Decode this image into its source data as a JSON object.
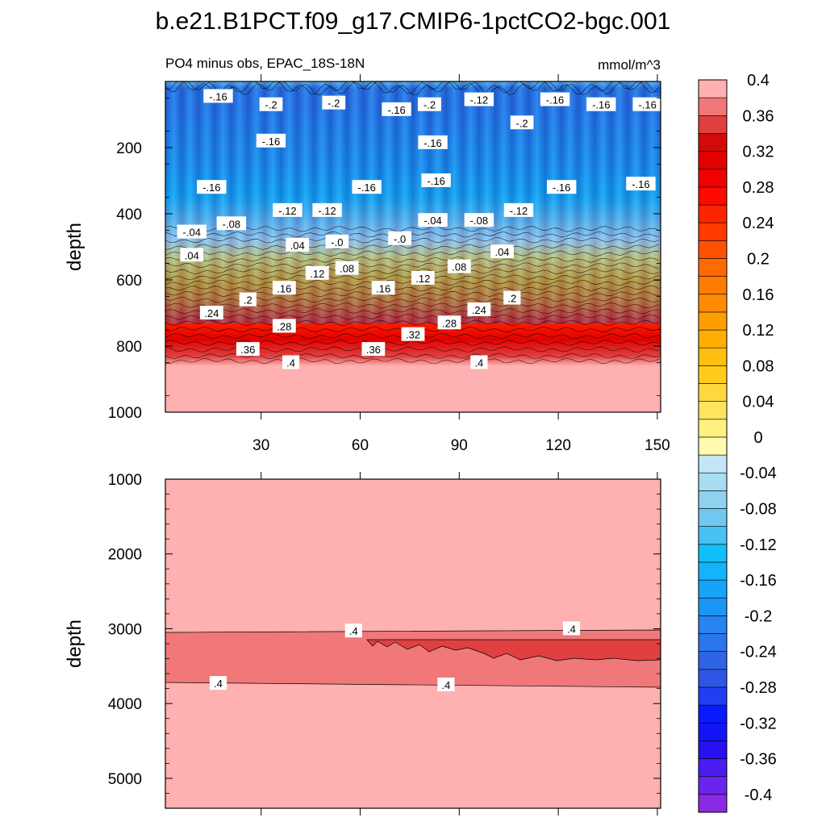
{
  "chart_data": {
    "type": "heatmap",
    "title": "b.e21.B1PCT.f09_g17.CMIP6-1pctCO2-bgc.001",
    "subtitle_left": "PO4 minus obs, EPAC_18S-18N",
    "subtitle_right": "mmol/m^3",
    "panels": [
      {
        "name": "upper",
        "ylabel": "depth",
        "xlim": [
          1,
          151
        ],
        "ylim": [
          0,
          1000
        ],
        "xticks": [
          30,
          60,
          90,
          120,
          150
        ],
        "xtick_labels": [
          "30",
          "60",
          "90",
          "120",
          "150"
        ],
        "yticks": [
          200,
          400,
          600,
          800,
          1000
        ],
        "ytick_labels": [
          "200",
          "400",
          "600",
          "800",
          "1000"
        ],
        "value_profile": [
          {
            "depth": 0,
            "value": -0.06
          },
          {
            "depth": 20,
            "value": -0.2
          },
          {
            "depth": 80,
            "value": -0.2
          },
          {
            "depth": 250,
            "value": -0.16
          },
          {
            "depth": 350,
            "value": -0.13
          },
          {
            "depth": 420,
            "value": -0.07
          },
          {
            "depth": 480,
            "value": 0.0
          },
          {
            "depth": 530,
            "value": 0.05
          },
          {
            "depth": 600,
            "value": 0.13
          },
          {
            "depth": 660,
            "value": 0.2
          },
          {
            "depth": 720,
            "value": 0.27
          },
          {
            "depth": 780,
            "value": 0.33
          },
          {
            "depth": 830,
            "value": 0.38
          },
          {
            "depth": 860,
            "value": 0.42
          },
          {
            "depth": 1000,
            "value": 0.42
          }
        ],
        "contour_labels": [
          {
            "text": "-.16",
            "x": 17,
            "y": 45
          },
          {
            "text": "-.2",
            "x": 33,
            "y": 70
          },
          {
            "text": "-.2",
            "x": 52,
            "y": 65
          },
          {
            "text": "-.16",
            "x": 71,
            "y": 85
          },
          {
            "text": "-.2",
            "x": 81,
            "y": 70
          },
          {
            "text": "-.12",
            "x": 96,
            "y": 55
          },
          {
            "text": "-.16",
            "x": 119,
            "y": 55
          },
          {
            "text": "-.2",
            "x": 109,
            "y": 125
          },
          {
            "text": "-.16",
            "x": 133,
            "y": 70
          },
          {
            "text": "-.16",
            "x": 147,
            "y": 70
          },
          {
            "text": "-.16",
            "x": 33,
            "y": 180
          },
          {
            "text": "-.16",
            "x": 82,
            "y": 185
          },
          {
            "text": "-.16",
            "x": 15,
            "y": 320
          },
          {
            "text": "-.16",
            "x": 62,
            "y": 320
          },
          {
            "text": "-.16",
            "x": 83,
            "y": 300
          },
          {
            "text": "-.16",
            "x": 121,
            "y": 320
          },
          {
            "text": "-.16",
            "x": 145,
            "y": 310
          },
          {
            "text": "-.12",
            "x": 38,
            "y": 390
          },
          {
            "text": "-.12",
            "x": 50,
            "y": 390
          },
          {
            "text": "-.12",
            "x": 108,
            "y": 390
          },
          {
            "text": "-.04",
            "x": 9,
            "y": 455
          },
          {
            "text": "-.08",
            "x": 21,
            "y": 430
          },
          {
            "text": "-.04",
            "x": 82,
            "y": 420
          },
          {
            "text": "-.08",
            "x": 96,
            "y": 420
          },
          {
            "text": ".04",
            "x": 41,
            "y": 495
          },
          {
            "text": "-.0",
            "x": 53,
            "y": 485
          },
          {
            "text": "-.0",
            "x": 72,
            "y": 475
          },
          {
            "text": ".04",
            "x": 9,
            "y": 525
          },
          {
            "text": ".04",
            "x": 103,
            "y": 515
          },
          {
            "text": ".12",
            "x": 47,
            "y": 580
          },
          {
            "text": ".08",
            "x": 56,
            "y": 565
          },
          {
            "text": ".08",
            "x": 90,
            "y": 560
          },
          {
            "text": ".12",
            "x": 79,
            "y": 595
          },
          {
            "text": ".16",
            "x": 37,
            "y": 625
          },
          {
            "text": ".16",
            "x": 67,
            "y": 625
          },
          {
            "text": ".2",
            "x": 26,
            "y": 660
          },
          {
            "text": ".2",
            "x": 106,
            "y": 655
          },
          {
            "text": ".24",
            "x": 15,
            "y": 700
          },
          {
            "text": ".24",
            "x": 96,
            "y": 690
          },
          {
            "text": ".28",
            "x": 37,
            "y": 740
          },
          {
            "text": ".28",
            "x": 87,
            "y": 730
          },
          {
            "text": ".32",
            "x": 76,
            "y": 765
          },
          {
            "text": ".36",
            "x": 26,
            "y": 810
          },
          {
            "text": ".36",
            "x": 64,
            "y": 810
          },
          {
            "text": ".4",
            "x": 39,
            "y": 850
          },
          {
            "text": ".4",
            "x": 96,
            "y": 850
          }
        ]
      },
      {
        "name": "lower",
        "ylabel": "depth",
        "xlim": [
          1,
          151
        ],
        "ylim": [
          1000,
          5400
        ],
        "yticks": [
          1000,
          2000,
          3000,
          4000,
          5000
        ],
        "ytick_labels": [
          "1000",
          "2000",
          "3000",
          "4000",
          "5000"
        ],
        "contour_labels": [
          {
            "text": ".4",
            "x": 58,
            "y": 3030
          },
          {
            "text": ".4",
            "x": 124,
            "y": 3000
          },
          {
            "text": ".4",
            "x": 17,
            "y": 3730
          },
          {
            "text": ".4",
            "x": 86,
            "y": 3750
          }
        ]
      }
    ],
    "colorbar": {
      "levels": [
        -0.4,
        -0.38,
        -0.36,
        -0.34,
        -0.32,
        -0.3,
        -0.28,
        -0.26,
        -0.24,
        -0.22,
        -0.2,
        -0.18,
        -0.16,
        -0.14,
        -0.12,
        -0.1,
        -0.08,
        -0.06,
        -0.04,
        -0.02,
        0,
        0.02,
        0.04,
        0.06,
        0.08,
        0.1,
        0.12,
        0.14,
        0.16,
        0.18,
        0.2,
        0.22,
        0.24,
        0.26,
        0.28,
        0.3,
        0.32,
        0.34,
        0.36,
        0.38,
        0.4
      ],
      "tick_labels": [
        "-0.4",
        "-0.36",
        "-0.32",
        "-0.28",
        "-0.24",
        "-0.2",
        "-0.16",
        "-0.12",
        "-0.08",
        "-0.04",
        "0",
        "0.04",
        "0.08",
        "0.12",
        "0.16",
        "0.2",
        "0.24",
        "0.28",
        "0.32",
        "0.36",
        "0.4"
      ],
      "colors": [
        "#8a2be2",
        "#6a24ee",
        "#4a1df0",
        "#2810f5",
        "#1414fa",
        "#0a1aff",
        "#1f3ff0",
        "#2e55e6",
        "#2f64e6",
        "#2a76ea",
        "#2885ee",
        "#1a97f4",
        "#14a4f8",
        "#12b4fa",
        "#10c0fc",
        "#48c2f4",
        "#70c8f0",
        "#8ed2f0",
        "#a8dcf0",
        "#c2e6f6",
        "#fffab0",
        "#fff080",
        "#ffe45e",
        "#ffd840",
        "#ffcc1e",
        "#ffbe10",
        "#ffae04",
        "#ff9e00",
        "#ff8c00",
        "#ff7c00",
        "#ff6a00",
        "#ff5200",
        "#ff3a00",
        "#ff2400",
        "#ff0a00",
        "#f00000",
        "#e20000",
        "#d20a0a",
        "#e04040",
        "#f07878",
        "#ffb0b0"
      ]
    }
  }
}
